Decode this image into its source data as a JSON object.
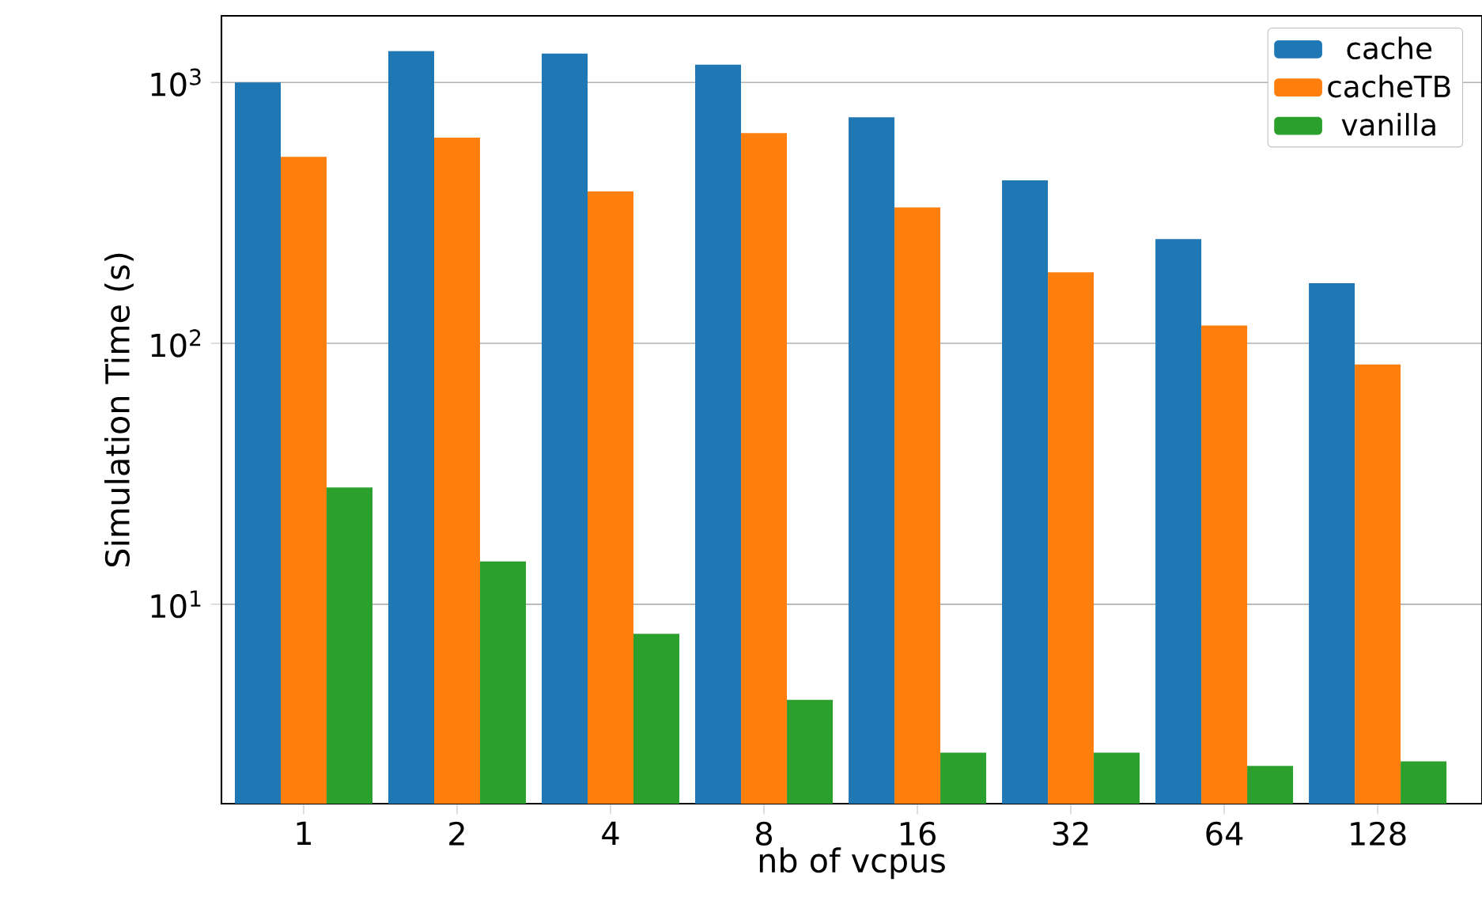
{
  "chart_data": {
    "type": "bar",
    "xlabel": "nb of vcpus",
    "ylabel": "Simulation Time (s)",
    "categories": [
      "1",
      "2",
      "4",
      "8",
      "16",
      "32",
      "64",
      "128"
    ],
    "series": [
      {
        "name": "cache",
        "color": "#1f77b4",
        "values": [
          1000,
          1320,
          1290,
          1170,
          735,
          421,
          251,
          170
        ]
      },
      {
        "name": "cacheTB",
        "color": "#ff7f0e",
        "values": [
          519,
          614,
          382,
          640,
          332,
          187,
          117,
          83
        ]
      },
      {
        "name": "vanilla",
        "color": "#2ca02c",
        "values": [
          28,
          14.6,
          7.7,
          4.3,
          2.7,
          2.7,
          2.4,
          2.5
        ]
      }
    ],
    "log": "y",
    "ylim": [
      1.72,
      1800
    ],
    "yticks": [
      {
        "value": 10,
        "label": "10$^{1}$"
      },
      {
        "value": 100,
        "label": "10$^{2}$"
      },
      {
        "value": 1000,
        "label": "10$^{3}$"
      }
    ],
    "grid": "y",
    "legend": "top right"
  }
}
